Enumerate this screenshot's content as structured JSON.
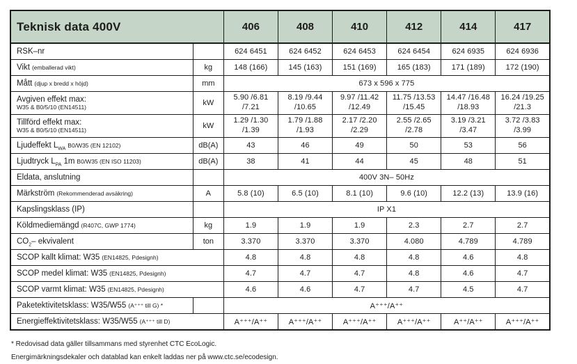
{
  "colors": {
    "header_bg": "#c5d6c8",
    "border": "#1d1d1b",
    "text": "#1d1d1b"
  },
  "table": {
    "title": "Teknisk data 400V",
    "models": [
      "406",
      "408",
      "410",
      "412",
      "414",
      "417"
    ],
    "rows": [
      {
        "label": "RSK–nr",
        "note": "",
        "unit": "",
        "values": [
          "624 6451",
          "624 6452",
          "624 6453",
          "624 6454",
          "624 6935",
          "624 6936"
        ]
      },
      {
        "label": "Vikt",
        "note": "(emballerad vikt)",
        "unit": "kg",
        "values": [
          "148 (166)",
          "145 (163)",
          "151 (169)",
          "165 (183)",
          "171 (189)",
          "172 (190)"
        ]
      },
      {
        "label": "Mått",
        "note": "(djup x bredd x höjd)",
        "unit": "mm",
        "span": "673 x 596 x 775"
      },
      {
        "label": "Avgiven effekt max:",
        "note": "W35 & B0/5/10 (EN14511)",
        "unit": "kW",
        "vt": [
          "5.90 /6.81",
          "8.19 /9.44",
          "9.97 /11.42",
          "11.75 /13.53",
          "14.47 /16.48",
          "16.24 /19.25"
        ],
        "vb": [
          "/7.21",
          "/10.65",
          "/12.49",
          "/15.45",
          "/18.93",
          "/21.3"
        ]
      },
      {
        "label": "Tillförd effekt max:",
        "note": "W35 & B0/5/10 (EN14511)",
        "unit": "kW",
        "vt": [
          "1.29 /1.30",
          "1.79 /1.88",
          "2.17 /2.20",
          "2.55 /2.65",
          "3.19 /3.21",
          "3.72 /3.83"
        ],
        "vb": [
          "/1.39",
          "/1.93",
          "/2.29",
          "/2.78",
          "/3.47",
          "/3.99"
        ]
      },
      {
        "label_main": "Ljudeffekt L",
        "label_sub": "WA",
        "label_note": "B0/W35 (EN 12102)",
        "unit": "dB(A)",
        "values": [
          "43",
          "46",
          "49",
          "50",
          "53",
          "56"
        ]
      },
      {
        "label_main": "Ljudtryck L",
        "label_sub": "PA",
        "label_mid": "1m",
        "label_note": "B0/W35 (EN ISO 11203)",
        "unit": "dB(A)",
        "values": [
          "38",
          "41",
          "44",
          "45",
          "48",
          "51"
        ]
      },
      {
        "label": "Eldata, anslutning",
        "note": "",
        "unit": "",
        "span": "400V 3N– 50Hz"
      },
      {
        "label": "Märkström",
        "note": "(Rekommenderad avsäkring)",
        "unit": "A",
        "values": [
          "5.8 (10)",
          "6.5 (10)",
          "8.1 (10)",
          "9.6 (10)",
          "12.2 (13)",
          "13.9 (16)"
        ]
      },
      {
        "label": "Kapslingsklass (IP)",
        "note": "",
        "unit": "",
        "span": "IP X1"
      },
      {
        "label": "Köldmediemängd",
        "note": "(R407C, GWP 1774)",
        "unit": "kg",
        "values": [
          "1.9",
          "1.9",
          "1.9",
          "2.3",
          "2.7",
          "2.7"
        ]
      },
      {
        "label_main": "CO",
        "label_sub": "2",
        "label_mid": "– ekvivalent",
        "unit": "ton",
        "values": [
          "3.370",
          "3.370",
          "3.370",
          "4.080",
          "4.789",
          "4.789"
        ]
      },
      {
        "label": "SCOP kallt klimat: W35",
        "note": "(EN14825, Pdesignh)",
        "values": [
          "4.8",
          "4.8",
          "4.8",
          "4.8",
          "4.6",
          "4.8"
        ]
      },
      {
        "label": "SCOP medel klimat: W35",
        "note": "(EN14825, Pdesignh)",
        "values": [
          "4.7",
          "4.7",
          "4.7",
          "4.8",
          "4.6",
          "4.7"
        ]
      },
      {
        "label": "SCOP varmt klimat: W35",
        "note": "(EN14825, Pdesignh)",
        "values": [
          "4.6",
          "4.6",
          "4.7",
          "4.7",
          "4.5",
          "4.7"
        ]
      },
      {
        "label": "Paketektivitetsklass: W35/W55",
        "note": "(A⁺⁺⁺ till G) *",
        "unit": "",
        "span": "A⁺⁺⁺/A⁺⁺"
      },
      {
        "label": "Energieffektivitetsklass: W35/W55",
        "note": "(A⁺⁺⁺ till D)",
        "unit": "",
        "values": [
          "A⁺⁺⁺/A⁺⁺",
          "A⁺⁺⁺/A⁺⁺",
          "A⁺⁺⁺/A⁺⁺",
          "A⁺⁺⁺/A⁺⁺",
          "A⁺⁺/A⁺⁺",
          "A⁺⁺⁺/A⁺⁺"
        ]
      }
    ]
  },
  "footnotes": [
    "* Redovisad data gäller tillsammans med styrenhet CTC EcoLogic.",
    "Energimärkningsdekaler och datablad kan enkelt laddas ner på www.ctc.se/ecodesign."
  ]
}
